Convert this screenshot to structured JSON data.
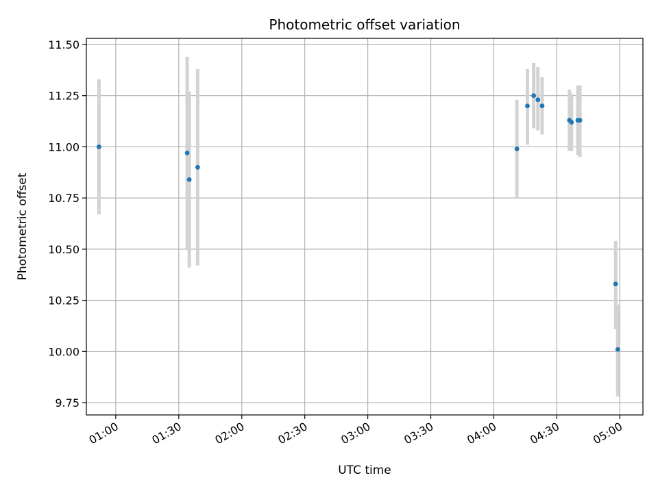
{
  "chart_data": {
    "type": "scatter",
    "title": "Photometric offset variation",
    "xlabel": "UTC time",
    "ylabel": "Photometric offset",
    "xlim": [
      "00:46",
      "05:11"
    ],
    "ylim": [
      9.69,
      11.53
    ],
    "grid": true,
    "x_ticks": [
      "01:00",
      "01:30",
      "02:00",
      "02:30",
      "03:00",
      "03:30",
      "04:00",
      "04:30",
      "05:00"
    ],
    "y_ticks": [
      "9.75",
      "10.00",
      "10.25",
      "10.50",
      "10.75",
      "11.00",
      "11.25",
      "11.50"
    ],
    "marker_color": "#1f77b4",
    "errorbar_color": "#d3d3d3",
    "points": [
      {
        "t": "00:52",
        "y": 11.0,
        "low": 10.67,
        "high": 11.33
      },
      {
        "t": "01:34",
        "y": 10.97,
        "low": 10.5,
        "high": 11.44
      },
      {
        "t": "01:35",
        "y": 10.84,
        "low": 10.41,
        "high": 11.27
      },
      {
        "t": "01:39",
        "y": 10.9,
        "low": 10.42,
        "high": 11.38
      },
      {
        "t": "04:11",
        "y": 10.99,
        "low": 10.75,
        "high": 11.23
      },
      {
        "t": "04:16",
        "y": 11.2,
        "low": 11.01,
        "high": 11.38
      },
      {
        "t": "04:19",
        "y": 11.25,
        "low": 11.09,
        "high": 11.41
      },
      {
        "t": "04:21",
        "y": 11.23,
        "low": 11.08,
        "high": 11.39
      },
      {
        "t": "04:23",
        "y": 11.2,
        "low": 11.06,
        "high": 11.34
      },
      {
        "t": "04:36",
        "y": 11.13,
        "low": 10.98,
        "high": 11.28
      },
      {
        "t": "04:37",
        "y": 11.12,
        "low": 10.98,
        "high": 11.26
      },
      {
        "t": "04:40",
        "y": 11.13,
        "low": 10.96,
        "high": 11.3
      },
      {
        "t": "04:41",
        "y": 11.13,
        "low": 10.95,
        "high": 11.3
      },
      {
        "t": "04:58",
        "y": 10.33,
        "low": 10.11,
        "high": 10.54
      },
      {
        "t": "04:59",
        "y": 10.01,
        "low": 9.78,
        "high": 10.23
      }
    ]
  }
}
